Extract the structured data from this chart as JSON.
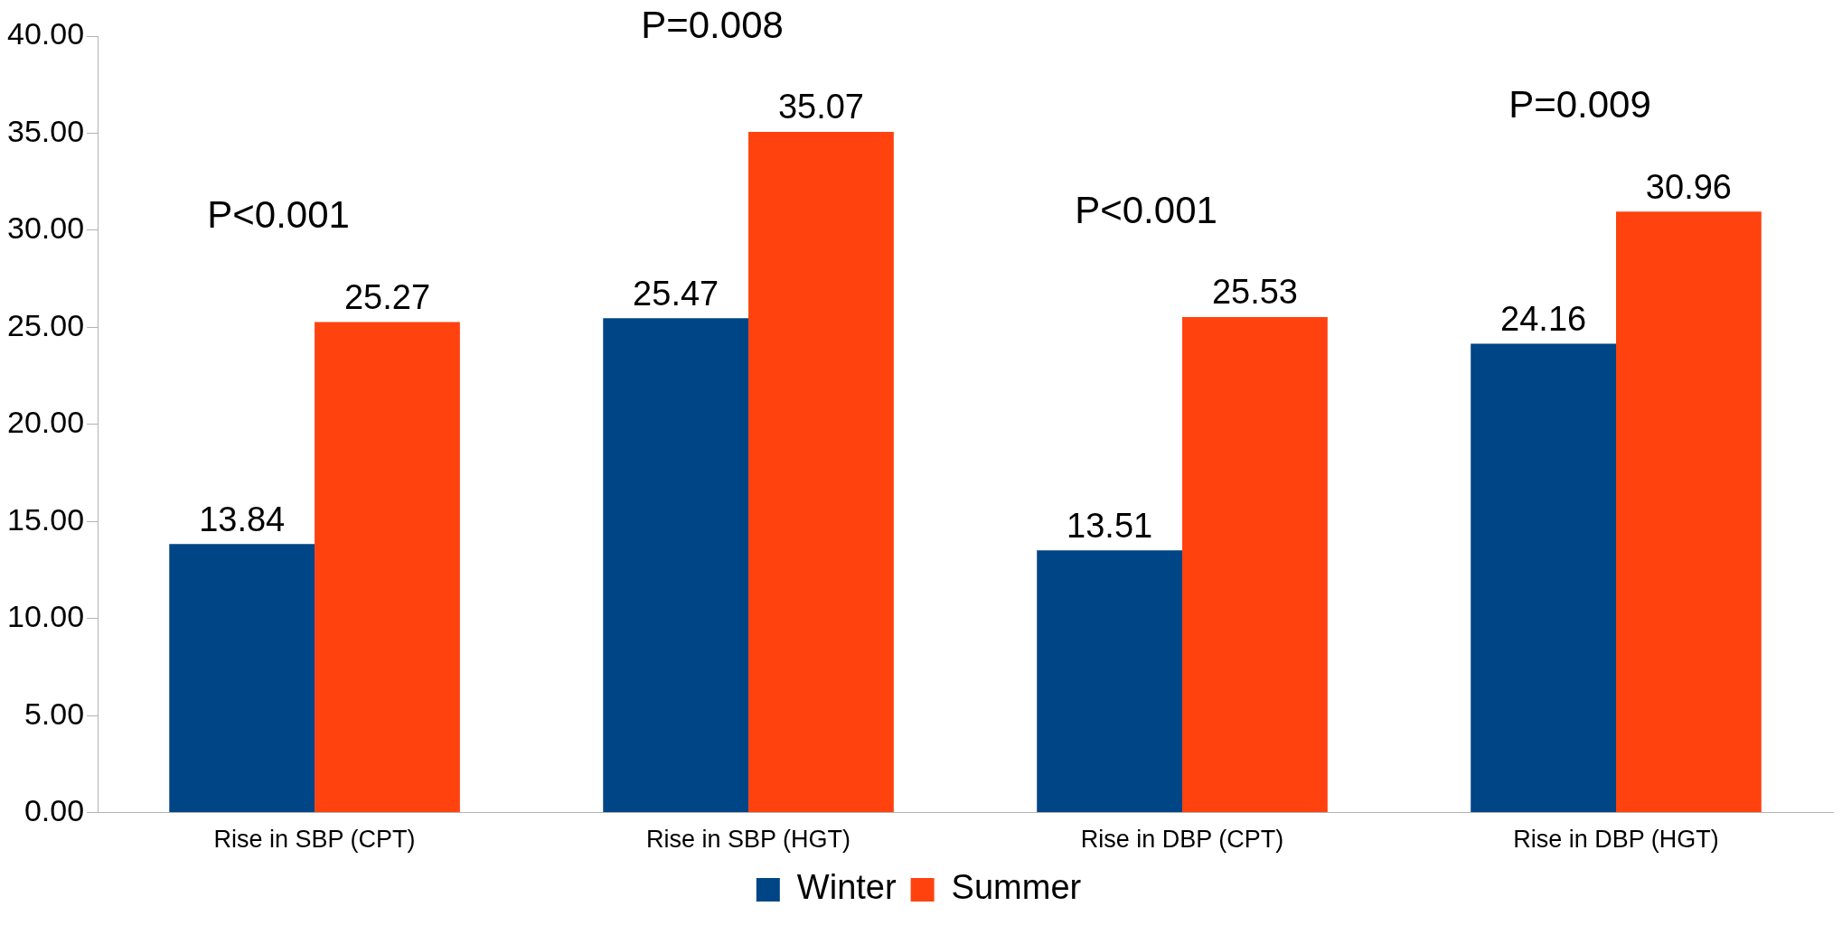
{
  "chart_data": {
    "type": "bar",
    "categories": [
      "Rise in SBP (CPT)",
      "Rise in SBP (HGT)",
      "Rise in DBP (CPT)",
      "Rise in DBP (HGT)"
    ],
    "series": [
      {
        "name": "Winter",
        "color": "#004586",
        "values": [
          13.84,
          25.47,
          13.51,
          24.16
        ]
      },
      {
        "name": "Summer",
        "color": "#ff420e",
        "values": [
          25.27,
          35.07,
          25.53,
          30.96
        ]
      }
    ],
    "ylim": [
      0,
      40
    ],
    "yticks": [
      {
        "value": 0,
        "label": "0.00"
      },
      {
        "value": 5,
        "label": "5.00"
      },
      {
        "value": 10,
        "label": "10.00"
      },
      {
        "value": 15,
        "label": "15.00"
      },
      {
        "value": 20,
        "label": "20.00"
      },
      {
        "value": 25,
        "label": "25.00"
      },
      {
        "value": 30,
        "label": "30.00"
      },
      {
        "value": 35,
        "label": "35.00"
      },
      {
        "value": 40,
        "label": "40.00"
      }
    ],
    "grid": false,
    "legend": "bottom",
    "data_labels": true,
    "annotations": [
      "P<0.001",
      "P=0.008",
      "P<0.001",
      "P=0.009"
    ]
  }
}
